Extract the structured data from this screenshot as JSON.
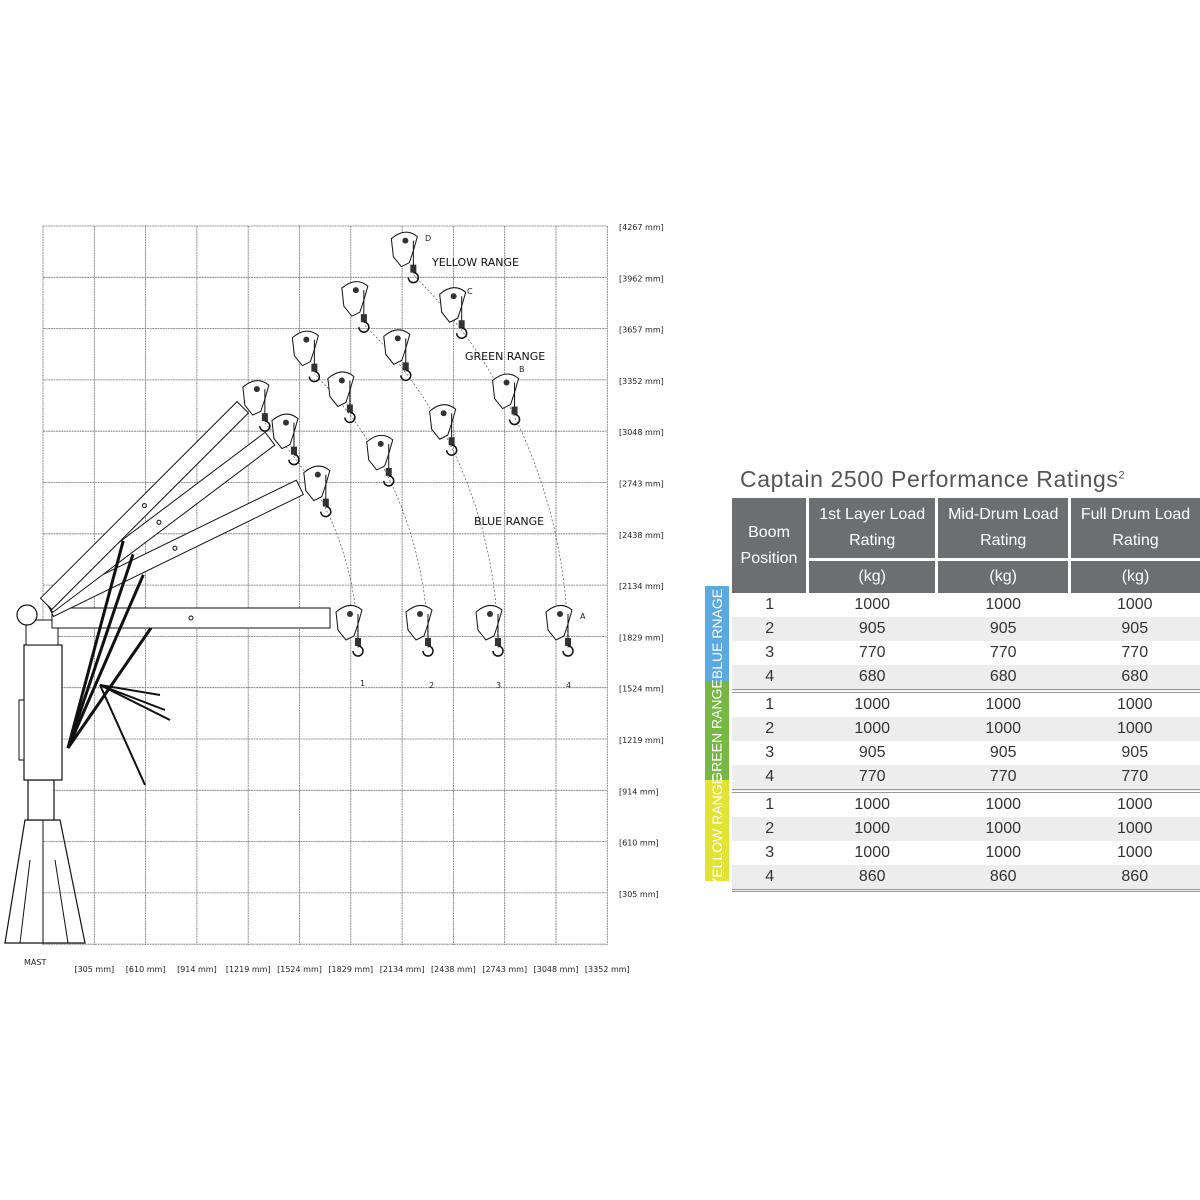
{
  "diagram": {
    "y_axis_labels": [
      "[4267 mm]",
      "[3962 mm]",
      "[3657 mm]",
      "[3352 mm]",
      "[3048 mm]",
      "[2743 mm]",
      "[2438 mm]",
      "[2134 mm]",
      "[1829 mm]",
      "[1524 mm]",
      "[1219 mm]",
      "[914 mm]",
      "[610 mm]",
      "[305 mm]"
    ],
    "x_axis_labels": [
      "[305 mm]",
      "[610 mm]",
      "[914 mm]",
      "[1219 mm]",
      "[1524 mm]",
      "[1829 mm]",
      "[2134 mm]",
      "[2438 mm]",
      "[2743 mm]",
      "[3048 mm]",
      "[3352 mm]"
    ],
    "mast_label": "MAST",
    "ranges": {
      "yellow": "YELLOW RANGE",
      "green": "GREEN RANGE",
      "blue": "BLUE RANGE"
    },
    "angle_labels": [
      "A",
      "B",
      "C",
      "D"
    ],
    "position_labels": [
      "1",
      "2",
      "3",
      "4"
    ]
  },
  "table": {
    "title": "Captain 2500 Performance Ratings",
    "title_sup": "2",
    "headers": {
      "boom_position": "Boom Position",
      "col1": "1st Layer Load Rating",
      "col2": "Mid-Drum Load Rating",
      "col3": "Full Drum Load Rating",
      "unit": "(kg)"
    },
    "groups": [
      {
        "label": "BLUE RNAGE",
        "color": "#5aa9e0",
        "rows": [
          [
            "1",
            "1000",
            "1000",
            "1000"
          ],
          [
            "2",
            "905",
            "905",
            "905"
          ],
          [
            "3",
            "770",
            "770",
            "770"
          ],
          [
            "4",
            "680",
            "680",
            "680"
          ]
        ]
      },
      {
        "label": "GREEN RANGE",
        "color": "#76b843",
        "rows": [
          [
            "1",
            "1000",
            "1000",
            "1000"
          ],
          [
            "2",
            "1000",
            "1000",
            "1000"
          ],
          [
            "3",
            "905",
            "905",
            "905"
          ],
          [
            "4",
            "770",
            "770",
            "770"
          ]
        ]
      },
      {
        "label": "YELLOW RANGE",
        "color": "#e3e336",
        "rows": [
          [
            "1",
            "1000",
            "1000",
            "1000"
          ],
          [
            "2",
            "1000",
            "1000",
            "1000"
          ],
          [
            "3",
            "1000",
            "1000",
            "1000"
          ],
          [
            "4",
            "860",
            "860",
            "860"
          ]
        ]
      }
    ]
  }
}
